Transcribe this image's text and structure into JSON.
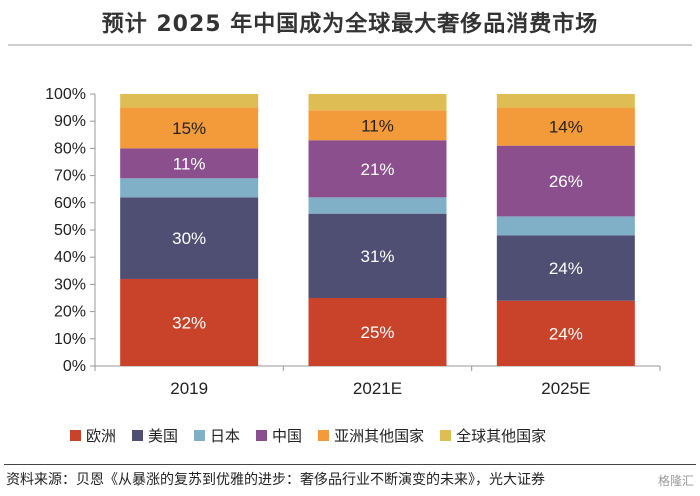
{
  "chart_data": {
    "type": "bar",
    "stacked": true,
    "title": "预计 2025 年中国成为全球最大奢侈品消费市场",
    "categories": [
      "2019",
      "2021E",
      "2025E"
    ],
    "yticks": [
      "0%",
      "10%",
      "20%",
      "30%",
      "40%",
      "50%",
      "60%",
      "70%",
      "80%",
      "90%",
      "100%"
    ],
    "ylim": [
      0,
      100
    ],
    "series": [
      {
        "name": "欧洲",
        "color": "#c9432b",
        "values": [
          32,
          25,
          24
        ],
        "labels": [
          "32%",
          "25%",
          "24%"
        ]
      },
      {
        "name": "美国",
        "color": "#4f4e73",
        "values": [
          30,
          31,
          24
        ],
        "labels": [
          "30%",
          "31%",
          "24%"
        ]
      },
      {
        "name": "日本",
        "color": "#7fb0c8",
        "values": [
          7,
          6,
          7
        ],
        "labels": [
          "",
          "",
          ""
        ]
      },
      {
        "name": "中国",
        "color": "#8b4f8e",
        "values": [
          11,
          21,
          26
        ],
        "labels": [
          "11%",
          "21%",
          "26%"
        ]
      },
      {
        "name": "亚洲其他国家",
        "color": "#f39a3a",
        "values": [
          15,
          11,
          14
        ],
        "labels": [
          "15%",
          "11%",
          "14%"
        ]
      },
      {
        "name": "全球其他国家",
        "color": "#dfbd55",
        "values": [
          5,
          6,
          5
        ],
        "labels": [
          "",
          "",
          ""
        ]
      }
    ],
    "legend_position": "bottom"
  },
  "source_text": "资料来源：贝恩《从暴涨的复苏到优雅的进步：奢侈品行业不断演变的未来》，光大证券",
  "watermark": "格隆汇"
}
